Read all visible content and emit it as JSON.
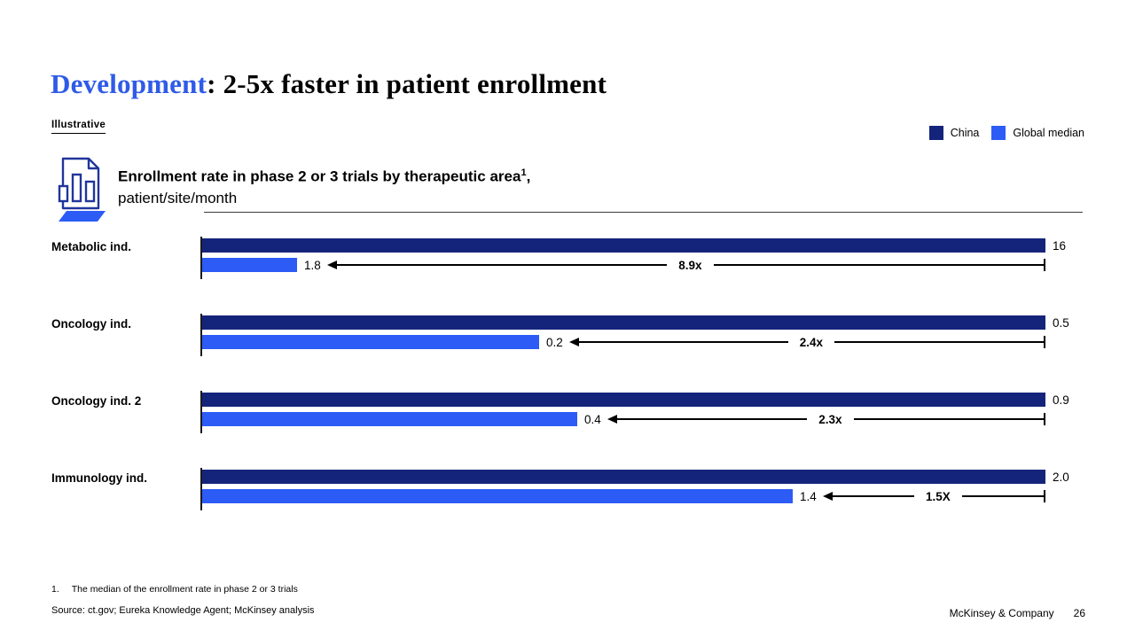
{
  "slide": {
    "title_accent": "Development",
    "title_rest": ": 2-5x faster in patient enrollment",
    "tag": "Illustrative",
    "footnote_num": "1.",
    "footnote_text": "The median of the enrollment rate in phase 2 or 3 trials",
    "source": "Source: ct.gov; Eureka Knowledge Agent; McKinsey analysis",
    "footer_brand": "McKinsey & Company",
    "page_number": "26"
  },
  "legend": [
    {
      "label": "China",
      "color": "#15247b"
    },
    {
      "label": "Global median",
      "color": "#2c5bf6"
    }
  ],
  "exhibit": {
    "icon": "bar-chart-document-icon",
    "title_line1": "Enrollment rate in phase 2 or 3 trials by therapeutic area",
    "title_sup": "1",
    "title_suffix": ",",
    "title_line2": "patient/site/month"
  },
  "chart_data": {
    "type": "bar",
    "orientation": "horizontal",
    "title": "Enrollment rate in phase 2 or 3 trials by therapeutic area, patient/site/month",
    "categories": [
      "Metabolic ind.",
      "Oncology ind.",
      "Oncology ind. 2",
      "Immunology ind."
    ],
    "series": [
      {
        "name": "China",
        "color": "#15247b",
        "values": [
          16,
          0.5,
          0.9,
          2.0
        ],
        "labels": [
          "16",
          "0.5",
          "0.9",
          "2.0"
        ]
      },
      {
        "name": "Global median",
        "color": "#2c5bf6",
        "values": [
          1.8,
          0.2,
          0.4,
          1.4
        ],
        "labels": [
          "1.8",
          "0.2",
          "0.4",
          "1.4"
        ]
      }
    ],
    "multipliers": [
      "8.9x",
      "2.4x",
      "2.3x",
      "1.5X"
    ],
    "normalization": "china-bar-full-width-per-row",
    "grid": false,
    "legend_position": "top-right"
  }
}
